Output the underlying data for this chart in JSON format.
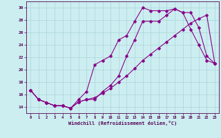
{
  "xlabel": "Windchill (Refroidissement éolien,°C)",
  "xlim": [
    -0.5,
    23.5
  ],
  "ylim": [
    13.0,
    31.0
  ],
  "xticks": [
    0,
    1,
    2,
    3,
    4,
    5,
    6,
    7,
    8,
    9,
    10,
    11,
    12,
    13,
    14,
    15,
    16,
    17,
    18,
    19,
    20,
    21,
    22,
    23
  ],
  "yticks": [
    14,
    16,
    18,
    20,
    22,
    24,
    26,
    28,
    30
  ],
  "bg_color": "#cceef0",
  "grid_color": "#aad4d8",
  "line_color": "#880088",
  "line1_x": [
    0,
    1,
    2,
    3,
    4,
    5,
    6,
    7,
    8,
    9,
    10,
    11,
    12,
    13,
    14,
    15,
    16,
    17,
    18,
    19,
    20,
    21,
    22,
    23
  ],
  "line1_y": [
    16.7,
    15.2,
    14.7,
    14.2,
    14.2,
    13.8,
    15.2,
    16.5,
    20.8,
    21.5,
    22.2,
    24.8,
    25.5,
    27.8,
    30.0,
    29.5,
    29.5,
    29.5,
    29.8,
    29.2,
    29.2,
    26.8,
    22.2,
    21.0
  ],
  "line2_x": [
    0,
    1,
    2,
    3,
    4,
    5,
    6,
    7,
    8,
    9,
    10,
    11,
    12,
    13,
    14,
    15,
    16,
    17,
    18,
    19,
    20,
    21,
    22,
    23
  ],
  "line2_y": [
    16.7,
    15.2,
    14.7,
    14.2,
    14.2,
    13.8,
    14.8,
    15.2,
    15.2,
    16.5,
    17.5,
    19.0,
    22.2,
    24.8,
    27.8,
    27.8,
    27.8,
    28.8,
    29.8,
    29.2,
    26.5,
    24.0,
    21.5,
    21.0
  ],
  "line3_x": [
    0,
    1,
    2,
    3,
    4,
    5,
    6,
    7,
    8,
    9,
    10,
    11,
    12,
    13,
    14,
    15,
    16,
    17,
    18,
    19,
    20,
    21,
    22,
    23
  ],
  "line3_y": [
    16.7,
    15.2,
    14.7,
    14.2,
    14.2,
    13.8,
    14.8,
    15.2,
    15.5,
    16.2,
    17.0,
    18.0,
    19.0,
    20.2,
    21.5,
    22.5,
    23.5,
    24.5,
    25.5,
    26.5,
    27.5,
    28.2,
    28.8,
    21.0
  ],
  "marker_size": 2.5,
  "line_width": 0.8
}
